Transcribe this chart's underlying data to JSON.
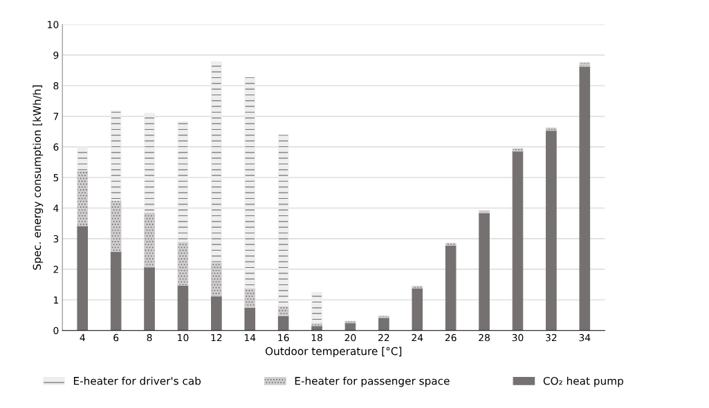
{
  "chart_data": {
    "type": "bar",
    "stacked": true,
    "xlabel": "Outdoor temperature [°C]",
    "ylabel": "Spec. energy consumption [kWh/h]",
    "categories": [
      "4",
      "6",
      "8",
      "10",
      "12",
      "14",
      "16",
      "18",
      "20",
      "22",
      "24",
      "26",
      "28",
      "30",
      "32",
      "34"
    ],
    "series": [
      {
        "name": "CO₂ heat pump",
        "color": "#767171",
        "values": [
          3.42,
          2.58,
          2.07,
          1.47,
          1.12,
          0.75,
          0.48,
          0.15,
          0.25,
          0.42,
          1.38,
          2.78,
          3.84,
          5.86,
          6.54,
          8.63
        ]
      },
      {
        "name": "E-heater for passenger space",
        "color": "#d0cece",
        "values": [
          1.8,
          1.67,
          1.78,
          1.43,
          1.1,
          0.63,
          0.32,
          0.1,
          0.05,
          0.05,
          0.07,
          0.07,
          0.08,
          0.08,
          0.08,
          0.12
        ]
      },
      {
        "name": "E-heater for driver's cab",
        "color": "#eeeeee",
        "values": [
          0.78,
          2.93,
          3.25,
          3.92,
          6.56,
          6.9,
          5.6,
          1.0,
          null,
          null,
          null,
          null,
          null,
          null,
          null,
          null
        ]
      }
    ],
    "ylim": [
      0,
      10
    ],
    "yticks": [
      0,
      1,
      2,
      3,
      4,
      5,
      6,
      7,
      8,
      9,
      10
    ],
    "grid": "y",
    "legend": "bottom"
  }
}
